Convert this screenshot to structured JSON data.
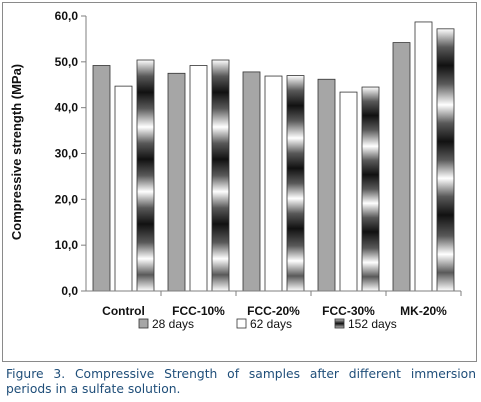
{
  "chart_data": {
    "type": "bar",
    "categories": [
      "Control",
      "FCC-10%",
      "FCC-20%",
      "FCC-30%",
      "MK-20%"
    ],
    "series": [
      {
        "name": "28 days",
        "values": [
          49.2,
          47.5,
          47.8,
          46.2,
          54.2
        ],
        "color": "#a6a6a6"
      },
      {
        "name": "62 days",
        "values": [
          44.7,
          49.2,
          46.9,
          43.4,
          58.7
        ],
        "color": "#ffffff"
      },
      {
        "name": "152 days",
        "values": [
          50.4,
          50.4,
          47.0,
          44.5,
          57.2
        ],
        "color": "#404040"
      }
    ],
    "ylabel": "Compressive strength (MPa)",
    "xlabel": "",
    "ylim": [
      0,
      60
    ],
    "yticks": [
      "0,0",
      "10,0",
      "20,0",
      "30,0",
      "40,0",
      "50,0",
      "60,0"
    ],
    "grid": false,
    "legend_position": "bottom"
  },
  "caption": "Figure 3. Compressive Strength of samples after different immersion periods in a sulfate solution."
}
